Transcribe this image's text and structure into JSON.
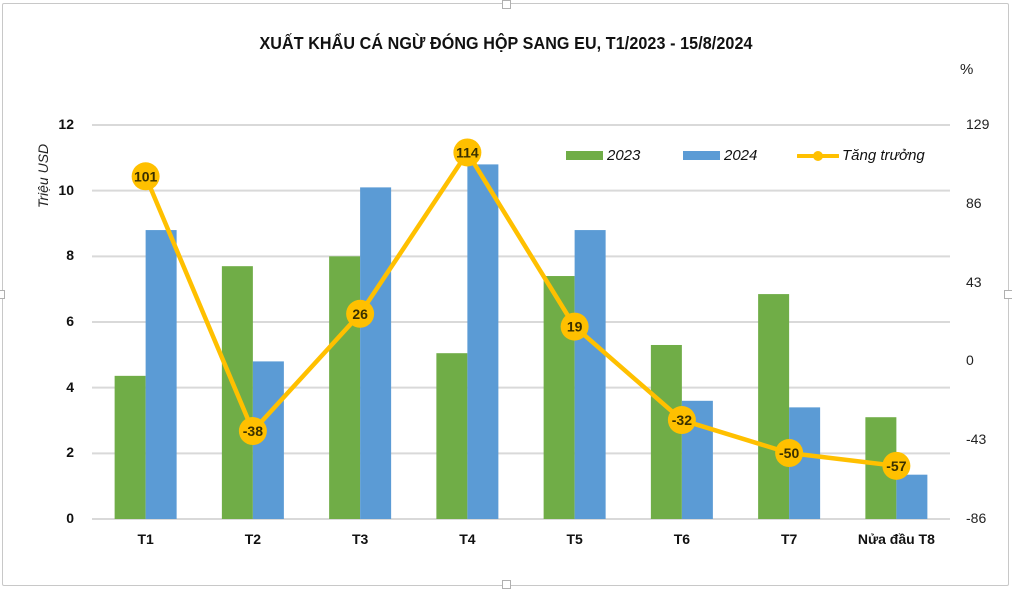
{
  "chart_data": {
    "type": "bar+line",
    "title": "XUẤT KHẨU CÁ NGỪ ĐÓNG HỘP SANG EU, T1/2023 - 15/8/2024",
    "xlabel": "",
    "ylabel": "Triệu USD",
    "y2label": "%",
    "categories": [
      "T1",
      "T2",
      "T3",
      "T4",
      "T5",
      "T6",
      "T7",
      "Nửa đầu T8"
    ],
    "series": [
      {
        "name": "2023",
        "type": "bar",
        "axis": "left",
        "color": "#70ad47",
        "values": [
          4.36,
          7.7,
          8.0,
          5.05,
          7.4,
          5.3,
          6.85,
          3.1
        ]
      },
      {
        "name": "2024",
        "type": "bar",
        "axis": "left",
        "color": "#5b9bd5",
        "values": [
          8.8,
          4.8,
          10.1,
          10.8,
          8.8,
          3.6,
          3.4,
          1.35
        ]
      },
      {
        "name": "Tăng trưởng",
        "type": "line",
        "axis": "right",
        "color": "#ffc000",
        "values": [
          101,
          -38,
          26,
          114,
          19,
          -32,
          -50,
          -57
        ],
        "labels": [
          "101",
          "-38",
          "26",
          "114",
          "19",
          "-32",
          "-50",
          "-57"
        ]
      }
    ],
    "ylim": [
      0,
      12
    ],
    "y2lim": [
      -86,
      129
    ],
    "yticks": [
      "0",
      "2",
      "4",
      "6",
      "8",
      "10",
      "12"
    ],
    "y2ticks": [
      "-86",
      "-43",
      "0",
      "43",
      "86",
      "129"
    ],
    "grid": true,
    "legend_position": "top-right inside"
  },
  "legend": {
    "items": [
      {
        "label": "2023",
        "color": "#70ad47"
      },
      {
        "label": "2024",
        "color": "#5b9bd5"
      },
      {
        "label": "Tăng trưởng",
        "color": "#ffc000"
      }
    ]
  }
}
